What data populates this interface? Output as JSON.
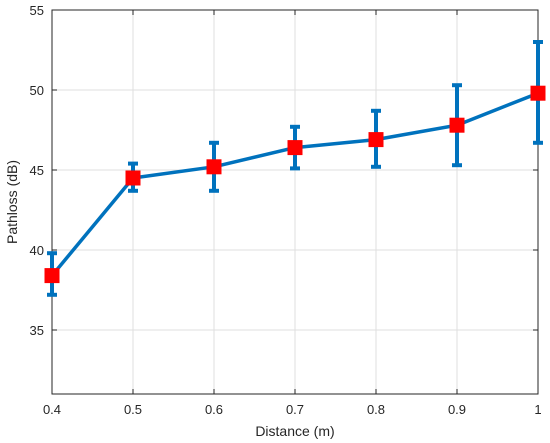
{
  "chart_data": {
    "type": "line",
    "title": "",
    "xlabel": "Distance (m)",
    "ylabel": "Pathloss (dB)",
    "xlim": [
      0.4,
      1.0
    ],
    "ylim": [
      31,
      55
    ],
    "xticks": [
      0.4,
      0.5,
      0.6,
      0.7,
      0.8,
      0.9,
      1.0
    ],
    "xtick_labels": [
      "0.4",
      "0.5",
      "0.6",
      "0.7",
      "0.8",
      "0.9",
      "1"
    ],
    "yticks": [
      35,
      40,
      45,
      50,
      55
    ],
    "ytick_labels": [
      "35",
      "40",
      "45",
      "50",
      "55"
    ],
    "grid": true,
    "legend": "none",
    "series": [
      {
        "x": [
          0.4,
          0.5,
          0.6,
          0.7,
          0.8,
          0.9,
          1.0
        ],
        "y": [
          38.4,
          44.5,
          45.2,
          46.4,
          46.9,
          47.8,
          49.8
        ],
        "err_low": [
          37.2,
          43.7,
          43.7,
          45.1,
          45.2,
          45.3,
          46.7
        ],
        "err_high": [
          39.8,
          45.4,
          46.7,
          47.7,
          48.7,
          50.3,
          53.0
        ],
        "line_color": "#0072BD",
        "marker": "square",
        "marker_color": "#FF0000"
      }
    ]
  }
}
